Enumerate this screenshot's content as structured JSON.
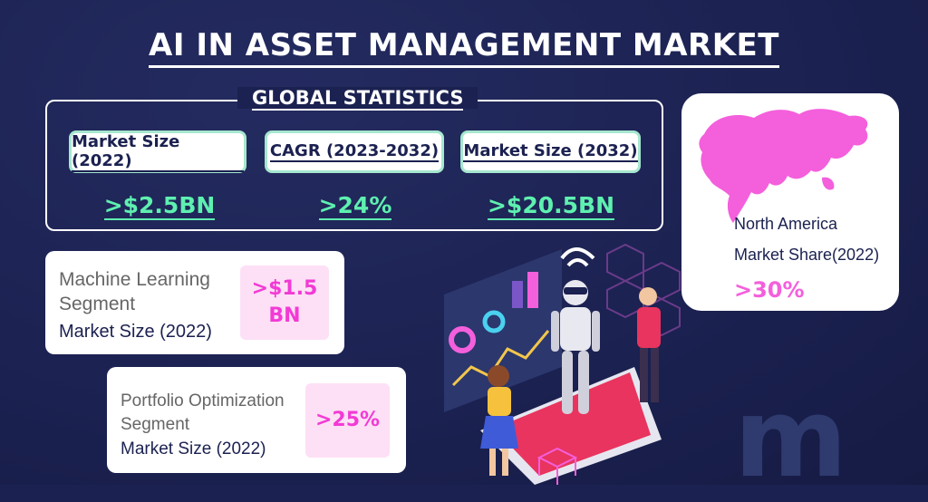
{
  "title": "AI IN ASSET MANAGEMENT MARKET",
  "global_stats": {
    "label": "GLOBAL STATISTICS",
    "cards": [
      {
        "label": "Market Size (2022)",
        "value": ">$2.5BN"
      },
      {
        "label": "CAGR (2023-2032)",
        "value": ">24%"
      },
      {
        "label": "Market Size (2032)",
        "value": ">$20.5BN"
      }
    ]
  },
  "region": {
    "line1": "North America",
    "line2": "Market Share(2022)",
    "value": ">30%"
  },
  "segments": [
    {
      "name_line1": "Machine Learning",
      "name_line2": "Segment",
      "size_label": "Market Size (2022)",
      "value_line1": ">$1.5",
      "value_line2": "BN"
    },
    {
      "name_line1": "Portfolio Optimization",
      "name_line2": "Segment",
      "size_label": "Market Size (2022)",
      "value_line1": ">25%",
      "value_line2": ""
    }
  ],
  "watermark": "m",
  "colors": {
    "background": "#1b2150",
    "accent_green": "#5ef0b0",
    "accent_pink": "#f45fdc",
    "card_border": "#a6e7cf"
  }
}
